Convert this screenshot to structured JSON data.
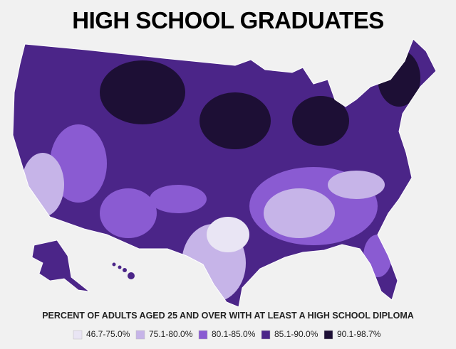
{
  "header": {
    "title": "HIGH SCHOOL GRADUATES"
  },
  "legend": {
    "title": "PERCENT OF ADULTS AGED 25 AND OVER WITH AT LEAST A HIGH SCHOOL DIPLOMA",
    "items": [
      {
        "label": "46.7-75.0%",
        "color": "#e9e5f4"
      },
      {
        "label": "75.1-80.0%",
        "color": "#c6b4e8"
      },
      {
        "label": "80.1-85.0%",
        "color": "#8a5bd2"
      },
      {
        "label": "85.1-90.0%",
        "color": "#4b2588"
      },
      {
        "label": "90.1-98.7%",
        "color": "#1d0f35"
      }
    ]
  }
}
